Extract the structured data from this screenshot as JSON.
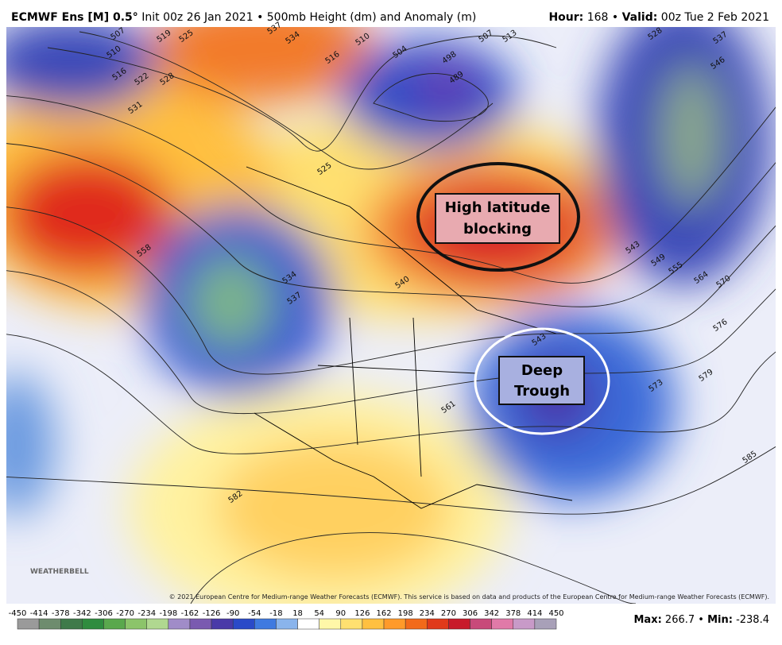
{
  "header": {
    "model": "ECMWF Ens [M] 0.5°",
    "description": "Init 00z 26 Jan 2021 • 500mb Height (dm) and Anomaly (m)",
    "hour_label": "Hour:",
    "hour": "168 •",
    "valid_label": "Valid:",
    "valid": "00z Tue 2 Feb 2021"
  },
  "annotations": [
    {
      "text": "High latitude",
      "text2": "blocking"
    },
    {
      "text": "Deep",
      "text2": "Trough"
    }
  ],
  "contour_labels": [
    "507",
    "510",
    "516",
    "519",
    "522",
    "525",
    "528",
    "531",
    "537",
    "534",
    "516",
    "510",
    "504",
    "498",
    "489",
    "507",
    "513",
    "528",
    "537",
    "546",
    "558",
    "525",
    "540",
    "543",
    "549",
    "555",
    "564",
    "570",
    "576",
    "579",
    "573",
    "534",
    "537",
    "543",
    "561",
    "582",
    "585"
  ],
  "copyright": "© 2021 European Centre for Medium-range Weather Forecasts (ECMWF). This service is based on data and products of the European Centre for Medium-range Weather Forecasts (ECMWF).",
  "logo": "WEATHERBELL",
  "colorbar": {
    "ticks": [
      -450,
      -414,
      -378,
      -342,
      -306,
      -270,
      -234,
      -198,
      -162,
      -126,
      -90,
      -54,
      -18,
      18,
      54,
      90,
      126,
      162,
      198,
      234,
      270,
      306,
      342,
      378,
      414,
      450
    ],
    "colors": [
      "#9a9a9a",
      "#6e8c6e",
      "#3f7a4a",
      "#2f8c3f",
      "#5aa84d",
      "#8cc46a",
      "#b0d890",
      "#a08cc8",
      "#7a5ab0",
      "#4a3aa8",
      "#2a4ac8",
      "#3f7ae0",
      "#8ab4ec",
      "#ffffff",
      "#fff7a8",
      "#ffe070",
      "#ffc040",
      "#ff9a2a",
      "#f26a1a",
      "#e03a1a",
      "#c81a2a",
      "#c84a7a",
      "#e07aa8",
      "#c89ac8",
      "#a8a0b8"
    ]
  },
  "stats": {
    "max_label": "Max:",
    "max": 266.7,
    "min_label": "Min:",
    "min": -238.4
  }
}
